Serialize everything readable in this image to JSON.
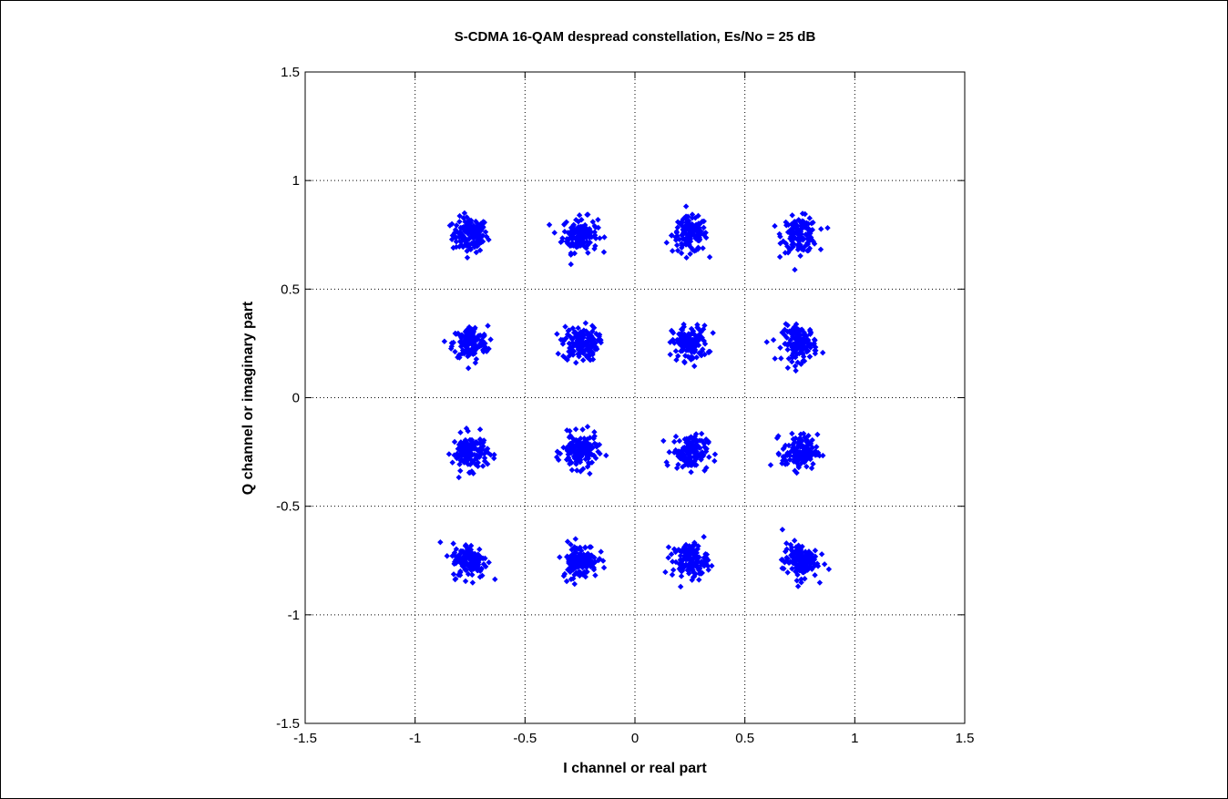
{
  "chart_data": {
    "type": "scatter",
    "title": "S-CDMA 16-QAM despread constellation, Es/No = 25 dB",
    "xlabel": "I channel or real part",
    "ylabel": "Q channel or imaginary part",
    "xlim": [
      -1.5,
      1.5
    ],
    "ylim": [
      -1.5,
      1.5
    ],
    "xticks": [
      -1.5,
      -1,
      -0.5,
      0,
      0.5,
      1,
      1.5
    ],
    "yticks": [
      -1.5,
      -1,
      -0.5,
      0,
      0.5,
      1,
      1.5
    ],
    "xtick_labels": [
      "-1.5",
      "-1",
      "-0.5",
      "0",
      "0.5",
      "1",
      "1.5"
    ],
    "ytick_labels": [
      "-1.5",
      "-1",
      "-0.5",
      "0",
      "0.5",
      "1",
      "1.5"
    ],
    "grid": true,
    "marker_color": "#0000ff",
    "cluster_centers": [
      [
        -0.75,
        0.75
      ],
      [
        -0.25,
        0.75
      ],
      [
        0.25,
        0.75
      ],
      [
        0.75,
        0.75
      ],
      [
        -0.75,
        0.25
      ],
      [
        -0.25,
        0.25
      ],
      [
        0.25,
        0.25
      ],
      [
        0.75,
        0.25
      ],
      [
        -0.75,
        -0.25
      ],
      [
        -0.25,
        -0.25
      ],
      [
        0.25,
        -0.25
      ],
      [
        0.75,
        -0.25
      ],
      [
        -0.75,
        -0.75
      ],
      [
        -0.25,
        -0.75
      ],
      [
        0.25,
        -0.75
      ],
      [
        0.75,
        -0.75
      ]
    ],
    "cluster_spread": 0.04
  }
}
